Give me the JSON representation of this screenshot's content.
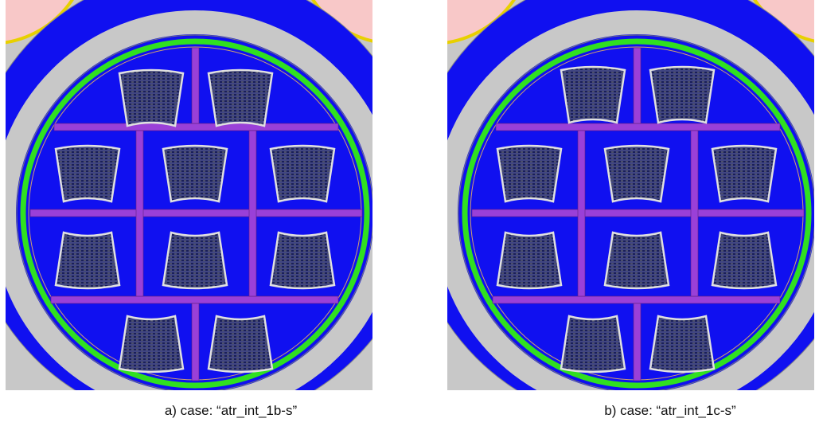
{
  "figure": {
    "panels": [
      {
        "caption": "a) case: “atr_int_1b-s”"
      },
      {
        "caption": "b) case: “atr_int_1c-s”"
      }
    ]
  }
}
